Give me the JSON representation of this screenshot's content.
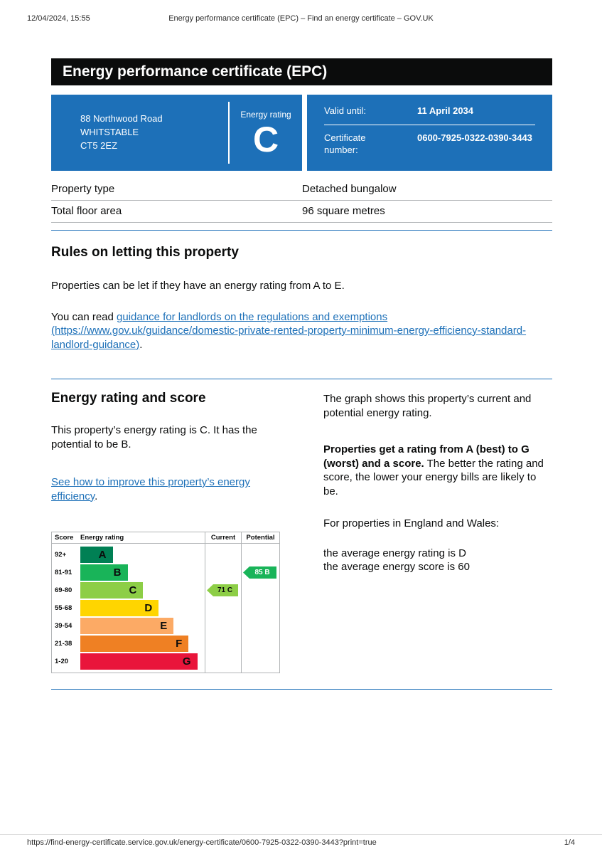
{
  "print_header": {
    "datetime": "12/04/2024, 15:55",
    "title": "Energy performance certificate (EPC) – Find an energy certificate – GOV.UK"
  },
  "banner": {
    "title": "Energy performance certificate (EPC)"
  },
  "summary": {
    "address_lines": [
      "88 Northwood Road",
      "WHITSTABLE",
      "CT5 2EZ"
    ],
    "energy_rating_label": "Energy rating",
    "energy_rating": "C",
    "valid_until_label": "Valid until:",
    "valid_until": "11 April 2034",
    "certificate_number_label": "Certificate number:",
    "certificate_number": "0600-7925-0322-0390-3443"
  },
  "property": {
    "rows": [
      {
        "label": "Property type",
        "value": "Detached bungalow"
      },
      {
        "label": "Total floor area",
        "value": "96 square metres"
      }
    ]
  },
  "rules": {
    "heading": "Rules on letting this property",
    "para1": "Properties can be let if they have an energy rating from A to E.",
    "para2_prefix": "You can read ",
    "para2_link": "guidance for landlords on the regulations and exemptions (https://www.gov.uk/guidance/domestic-private-rented-property-minimum-energy-efficiency-standard-landlord-guidance)",
    "para2_suffix": "."
  },
  "rating": {
    "heading": "Energy rating and score",
    "intro": "This property’s energy rating is C. It has the potential to be B.",
    "improve_link": "See how to improve this property’s energy efficiency",
    "improve_suffix": ".",
    "graph_para": "The graph shows this property’s current and potential energy rating.",
    "explain_bold": "Properties get a rating from A (best) to G (worst) and a score.",
    "explain_rest": " The better the rating and score, the lower your energy bills are likely to be.",
    "region_para": "For properties in England and Wales:",
    "average_rating_line": "the average energy rating is D",
    "average_score_line": "the average energy score is 60"
  },
  "chart_data": {
    "type": "epc-rating-bands",
    "title": "Energy rating and score",
    "headers": {
      "score": "Score",
      "rating": "Energy rating",
      "current": "Current",
      "potential": "Potential"
    },
    "bands": [
      {
        "score": "92+",
        "letter": "A",
        "color": "#008054",
        "width_pct": 26
      },
      {
        "score": "81-91",
        "letter": "B",
        "color": "#19b459",
        "width_pct": 38
      },
      {
        "score": "69-80",
        "letter": "C",
        "color": "#8dce46",
        "width_pct": 50.5
      },
      {
        "score": "55-68",
        "letter": "D",
        "color": "#ffd500",
        "width_pct": 63
      },
      {
        "score": "39-54",
        "letter": "E",
        "color": "#fcaa65",
        "width_pct": 75
      },
      {
        "score": "21-38",
        "letter": "F",
        "color": "#ef8023",
        "width_pct": 87
      },
      {
        "score": "1-20",
        "letter": "G",
        "color": "#e9153b",
        "width_pct": 94
      }
    ],
    "current": {
      "label": "71 C",
      "score": 71,
      "letter": "C",
      "band_index": 2,
      "color": "#8dce46",
      "text_color": "#0b0c0c"
    },
    "potential": {
      "label": "85 B",
      "score": 85,
      "letter": "B",
      "band_index": 1,
      "color": "#19b459",
      "text_color": "#ffffff"
    }
  },
  "print_footer": {
    "url": "https://find-energy-certificate.service.gov.uk/energy-certificate/0600-7925-0322-0390-3443?print=true",
    "page": "1/4"
  }
}
